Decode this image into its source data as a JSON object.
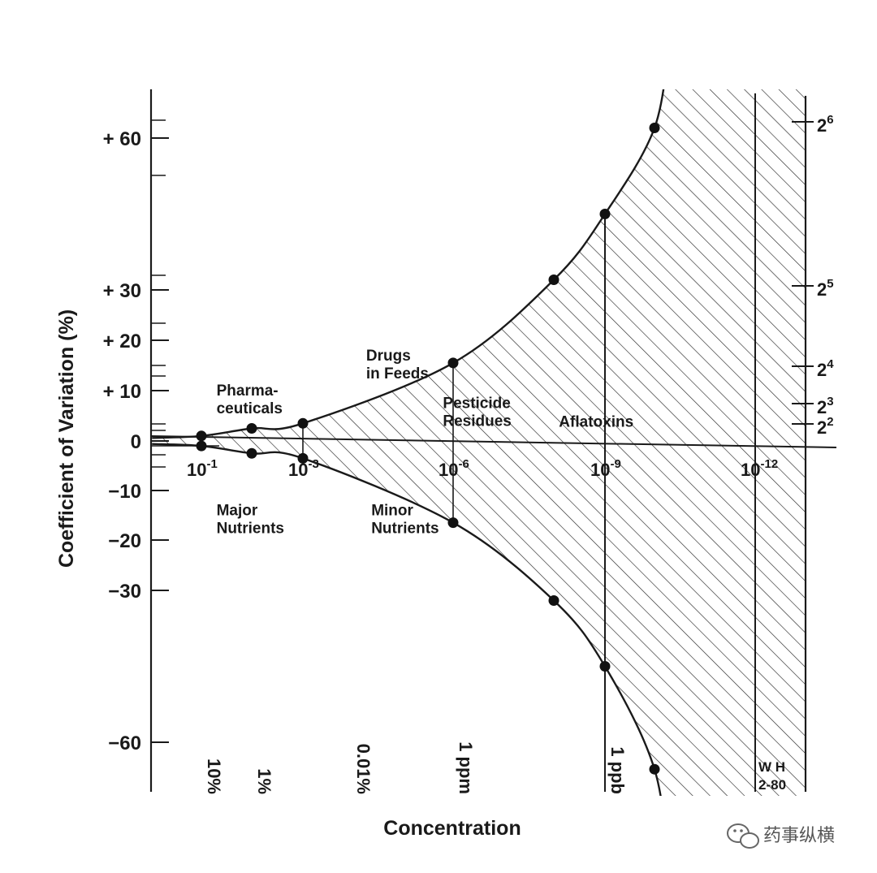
{
  "chart_data": {
    "type": "line",
    "title": "",
    "xlabel": "Concentration",
    "ylabel": "Coefficient of Variation (%)",
    "x_scale": "log10 (decreasing concentration, mass fraction)",
    "y_ticks": [
      "+ 60",
      "+ 30",
      "+ 20",
      "+ 10",
      "0",
      "−10",
      "−20",
      "−30",
      "−60"
    ],
    "y_tick_values": [
      60,
      30,
      20,
      10,
      0,
      -10,
      -20,
      -30,
      -60
    ],
    "x_exponent_ticks": [
      {
        "exp": -1,
        "base": "10",
        "sup": "-1"
      },
      {
        "exp": -3,
        "base": "10",
        "sup": "-3"
      },
      {
        "exp": -6,
        "base": "10",
        "sup": "-6"
      },
      {
        "exp": -9,
        "base": "10",
        "sup": "-9"
      },
      {
        "exp": -12,
        "base": "10",
        "sup": "-12"
      }
    ],
    "x_percent_labels": [
      {
        "exp": -1,
        "label": "10%"
      },
      {
        "exp": -2,
        "label": "1%"
      },
      {
        "exp": -4,
        "label": "0.01%"
      },
      {
        "exp": -6,
        "label": "1 ppm"
      },
      {
        "exp": -9,
        "label": "1 ppb"
      }
    ],
    "right_axis_ticks": [
      {
        "value": 64,
        "base": "2",
        "sup": "6"
      },
      {
        "value": 32,
        "base": "2",
        "sup": "5"
      },
      {
        "value": 16,
        "base": "2",
        "sup": "4"
      },
      {
        "value": 8,
        "base": "2",
        "sup": "3"
      },
      {
        "value": 4,
        "base": "2",
        "sup": "2"
      }
    ],
    "series": [
      {
        "name": "",
        "x_exponent": [
          -1,
          -2,
          -3,
          -6,
          -8,
          -9,
          -10
        ],
        "values": [
          1.0,
          2.5,
          3.5,
          15.5,
          32,
          45,
          62
        ]
      },
      {
        "name": "",
        "x_exponent": [
          -1,
          -2,
          -3,
          -6,
          -8,
          -9,
          -10
        ],
        "values": [
          -1.0,
          -2.5,
          -3.5,
          -16.5,
          -32,
          -45,
          -64
        ]
      }
    ],
    "annotations": [
      {
        "lines": [
          "Pharma-",
          "ceuticals"
        ],
        "x_exp": -1.3,
        "y": 9
      },
      {
        "lines": [
          "Drugs",
          "in Feeds"
        ],
        "x_exp": -4.3,
        "y": 16
      },
      {
        "lines": [
          "Pesticide",
          "Residues"
        ],
        "x_exp": -5.8,
        "y": 6.5
      },
      {
        "lines": [
          "Aflatoxins"
        ],
        "x_exp": -8.1,
        "y": 2.8
      },
      {
        "lines": [
          "Major",
          "Nutrients"
        ],
        "x_exp": -1.3,
        "y": -15
      },
      {
        "lines": [
          "Minor",
          "Nutrients"
        ],
        "x_exp": -4.4,
        "y": -15
      }
    ],
    "credit": [
      "W H",
      "2-80"
    ],
    "grid": false,
    "legend": "none",
    "shading": "diagonal hatch between curves"
  },
  "watermark": {
    "text": "药事纵横",
    "icon": "wechat-icon"
  }
}
